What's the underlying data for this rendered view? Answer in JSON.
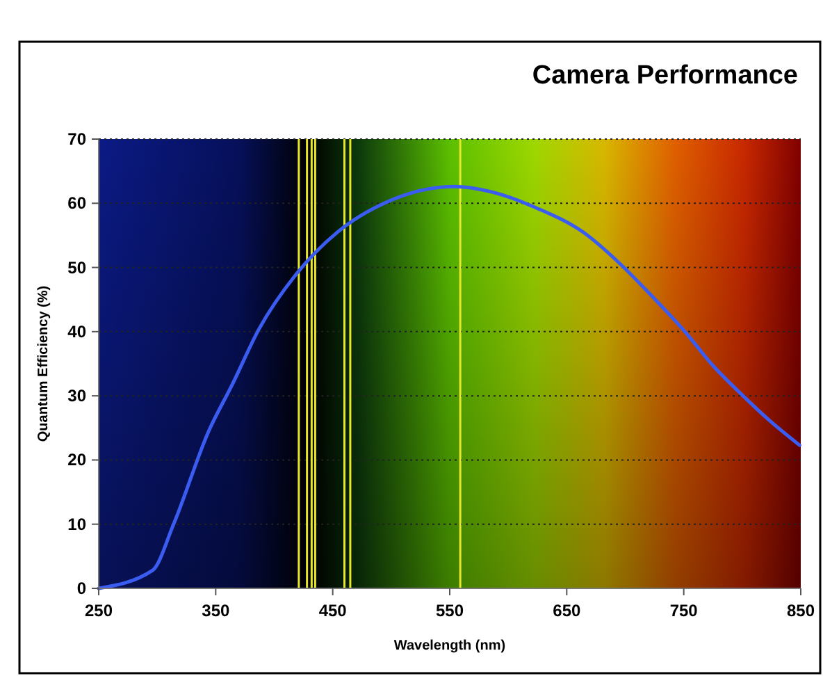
{
  "chart_data": {
    "type": "line",
    "title": "Camera Performance",
    "xlabel": "Wavelength (nm)",
    "ylabel": "Quantum Efficiency (%)",
    "xlim": [
      250,
      850
    ],
    "xticks": [
      250,
      350,
      450,
      550,
      650,
      750,
      850
    ],
    "ylim": [
      0,
      70
    ],
    "yticks": [
      0,
      10,
      20,
      30,
      40,
      50,
      60,
      70
    ],
    "grid": "y",
    "marker": "none",
    "line_style": "solid",
    "series": [
      {
        "color": "#3a5cf0",
        "x": [
          250,
          296,
          314,
          344,
          364,
          387,
          419,
          454,
          494,
          554,
          585,
          625,
          664,
          696,
          723,
          751,
          775,
          799,
          823,
          849
        ],
        "values": [
          0,
          2.8,
          10,
          24.5,
          31.7,
          40.4,
          49,
          55.5,
          60,
          62.6,
          61.8,
          59.2,
          55.5,
          50.5,
          45.5,
          40,
          34.7,
          30.3,
          26.2,
          22.3
        ]
      }
    ],
    "ref_lines": [
      {
        "axis": "x",
        "value": 421,
        "color": "#e6e62a"
      },
      {
        "axis": "x",
        "value": 428,
        "color": "#e6e62a"
      },
      {
        "axis": "x",
        "value": 432,
        "color": "#e6e62a"
      },
      {
        "axis": "x",
        "value": 435,
        "color": "#e6e62a"
      },
      {
        "axis": "x",
        "value": 460,
        "color": "#e6e62a"
      },
      {
        "axis": "x",
        "value": 465,
        "color": "#e6e62a"
      },
      {
        "axis": "x",
        "value": 559,
        "color": "#e6e62a"
      }
    ]
  }
}
